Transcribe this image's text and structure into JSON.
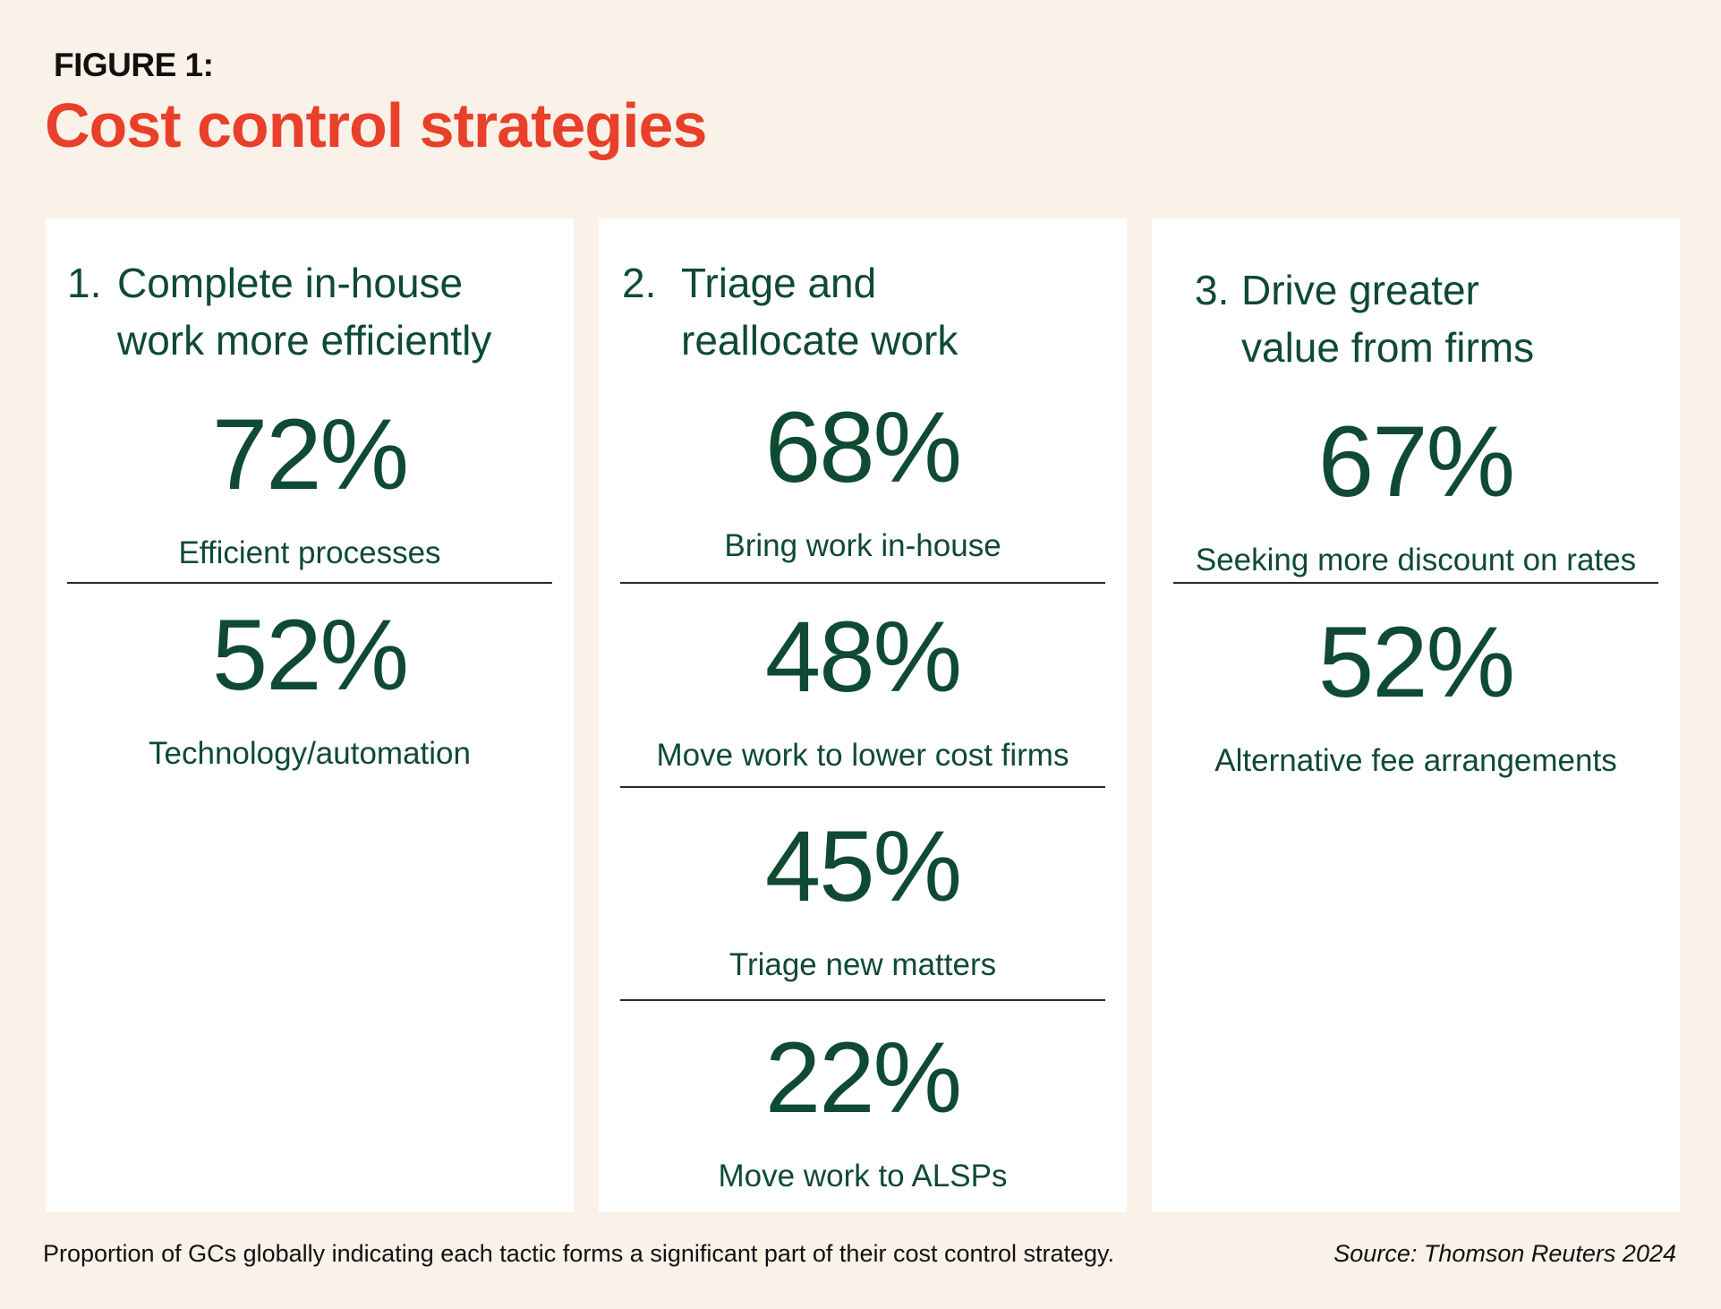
{
  "figure_label": "FIGURE 1:",
  "title": "Cost control strategies",
  "colors": {
    "background": "#FAF1E8",
    "title": "#E8402A",
    "text": "#0F4A32",
    "panel": "#FFFFFF"
  },
  "chart_data": {
    "type": "table",
    "unit": "%",
    "panels": [
      {
        "number": "1.",
        "heading_line1": "Complete in-house",
        "heading_line2": "work more efficiently",
        "stats": [
          {
            "value": "72%",
            "label": "Efficient processes"
          },
          {
            "value": "52%",
            "label": "Technology/automation"
          }
        ]
      },
      {
        "number": "2.",
        "heading_line1": "Triage and",
        "heading_line2": "reallocate work",
        "stats": [
          {
            "value": "68%",
            "label": "Bring work in-house"
          },
          {
            "value": "48%",
            "label": "Move work to lower cost firms"
          },
          {
            "value": "45%",
            "label": "Triage new matters"
          },
          {
            "value": "22%",
            "label": "Move work to ALSPs"
          }
        ]
      },
      {
        "number": "3.",
        "heading_line1": "Drive greater",
        "heading_line2": "value from firms",
        "stats": [
          {
            "value": "67%",
            "label": "Seeking more discount on rates"
          },
          {
            "value": "52%",
            "label": "Alternative fee arrangements"
          }
        ]
      }
    ]
  },
  "footnote": "Proportion of GCs globally indicating each tactic forms a significant part of their cost control strategy.",
  "source": "Source: Thomson Reuters 2024"
}
